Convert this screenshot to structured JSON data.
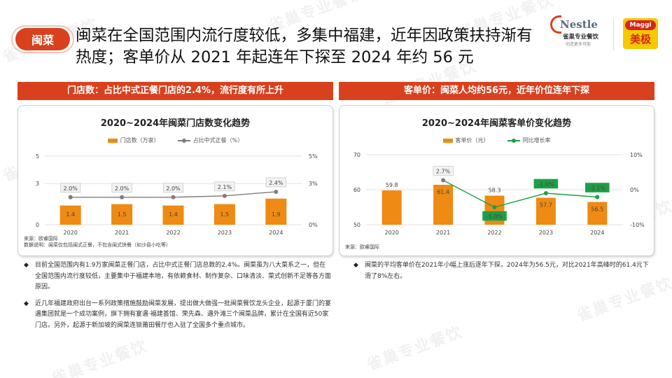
{
  "header": {
    "tag": "闽菜",
    "title": "闽菜在全国范围内流行度较低，多集中福建，近年因政策扶持渐有热度；客单价从 2021 年起连年下探至 2024 年约 56 元",
    "logo_nestle": "Nestle",
    "logo_nestle_sub": "雀巢专业餐饮",
    "logo_nestle_tagline": "创造更多可能",
    "logo_maggi": "Maggi",
    "logo_maggi_cn": "美极"
  },
  "watermark": "雀巢专业餐饮",
  "left": {
    "banner": "门店数：占比中式正餐门店的2.4%，流行度有所上升",
    "source_line1": "来源：欧睿国际",
    "source_line2": "数据说明：闽菜仅包括闽式正餐，不包含闽式快餐（如沙县小吃等）",
    "bullets": [
      "目前全国范围内有1.9万家闽菜正餐门店，占比中式正餐门店总数的2.4%。闽菜虽为八大菜系之一，但在全国范围内流行度较低，主要集中于福建本地，有依赖食材、制作复杂、口味清淡、菜式创新不足等各方面原因。",
      "近几年福建政府出台一系列政策措施鼓励闽菜发展，提出做大做强一批闽菜餐饮龙头企业，起源于厦门的宴遇集团就是一个成功案例，旗下拥有宴遇·福建荟馆、荣先森、遇外滩三个闽菜品牌，累计在全国有近50家门店。另外，起源于新加坡的闽菜连锁莆田餐厅也入驻了全国多个重点城市。"
    ]
  },
  "right": {
    "banner": "客单价：闽菜人均约56元，近年价位连年下探",
    "source_line1": "来源：欧睿国际",
    "bullets": [
      "闽菜的平均客单价在2021年小幅上涨后逐年下探，2024年为56.5元，对比2021年高峰时的61.4元下滑了8%左右。"
    ]
  },
  "colors": {
    "accent": "#d9411e",
    "bar": "#ef8a12",
    "line_gray": "#7d7d7d",
    "line_green": "#1e9e45"
  },
  "chart_data": [
    {
      "type": "bar",
      "title": "2020~2024年闽菜门店数变化趋势",
      "categories": [
        "2020",
        "2021",
        "2022",
        "2023",
        "2024"
      ],
      "series": [
        {
          "name": "门店数（万家）",
          "type": "bar",
          "values": [
            1.4,
            1.5,
            1.4,
            1.5,
            1.9
          ],
          "labels": [
            "1.4",
            "1.5",
            "1.4",
            "1.5",
            "1.9"
          ]
        },
        {
          "name": "占比中式正餐（%）",
          "type": "line",
          "axis": "right",
          "values": [
            2.0,
            2.0,
            2.0,
            2.1,
            2.4
          ],
          "labels": [
            "2.0%",
            "2.0%",
            "2.0%",
            "2.1%",
            "2.4%"
          ]
        }
      ],
      "ylim": [
        0,
        5
      ],
      "y_ticks": [
        "0",
        "3",
        "5"
      ],
      "y_tick_values": [
        0,
        3,
        5
      ],
      "y2lim": [
        0,
        5
      ],
      "y2_ticks": [
        "0%",
        "3%",
        "5%"
      ],
      "y2_tick_values": [
        0,
        3,
        5
      ],
      "grid": true,
      "legend": "top"
    },
    {
      "type": "bar",
      "title": "2020~2024年闽菜客单价变化趋势",
      "categories": [
        "2020",
        "2021",
        "2022",
        "2023",
        "2024"
      ],
      "series": [
        {
          "name": "客单价（元）",
          "type": "bar",
          "values": [
            59.8,
            61.4,
            58.3,
            57.7,
            56.5
          ],
          "labels": [
            "59.8",
            "61.4",
            "58.3",
            "57.7",
            "56.5"
          ]
        },
        {
          "name": "同比增长率",
          "type": "line",
          "axis": "right",
          "values": [
            null,
            2.7,
            -5.0,
            -1.0,
            -2.1
          ],
          "labels": [
            "",
            "2.7%",
            "-5.0%",
            "-1.0%",
            "-2.1%"
          ]
        }
      ],
      "ylim": [
        50,
        70
      ],
      "y_ticks": [
        "50",
        "60",
        "70"
      ],
      "y_tick_values": [
        50,
        60,
        70
      ],
      "y2lim": [
        -10,
        10
      ],
      "y2_ticks": [
        "-10%",
        "0%",
        "10%"
      ],
      "y2_tick_values": [
        -10,
        0,
        10
      ],
      "grid": true,
      "legend": "top"
    }
  ]
}
